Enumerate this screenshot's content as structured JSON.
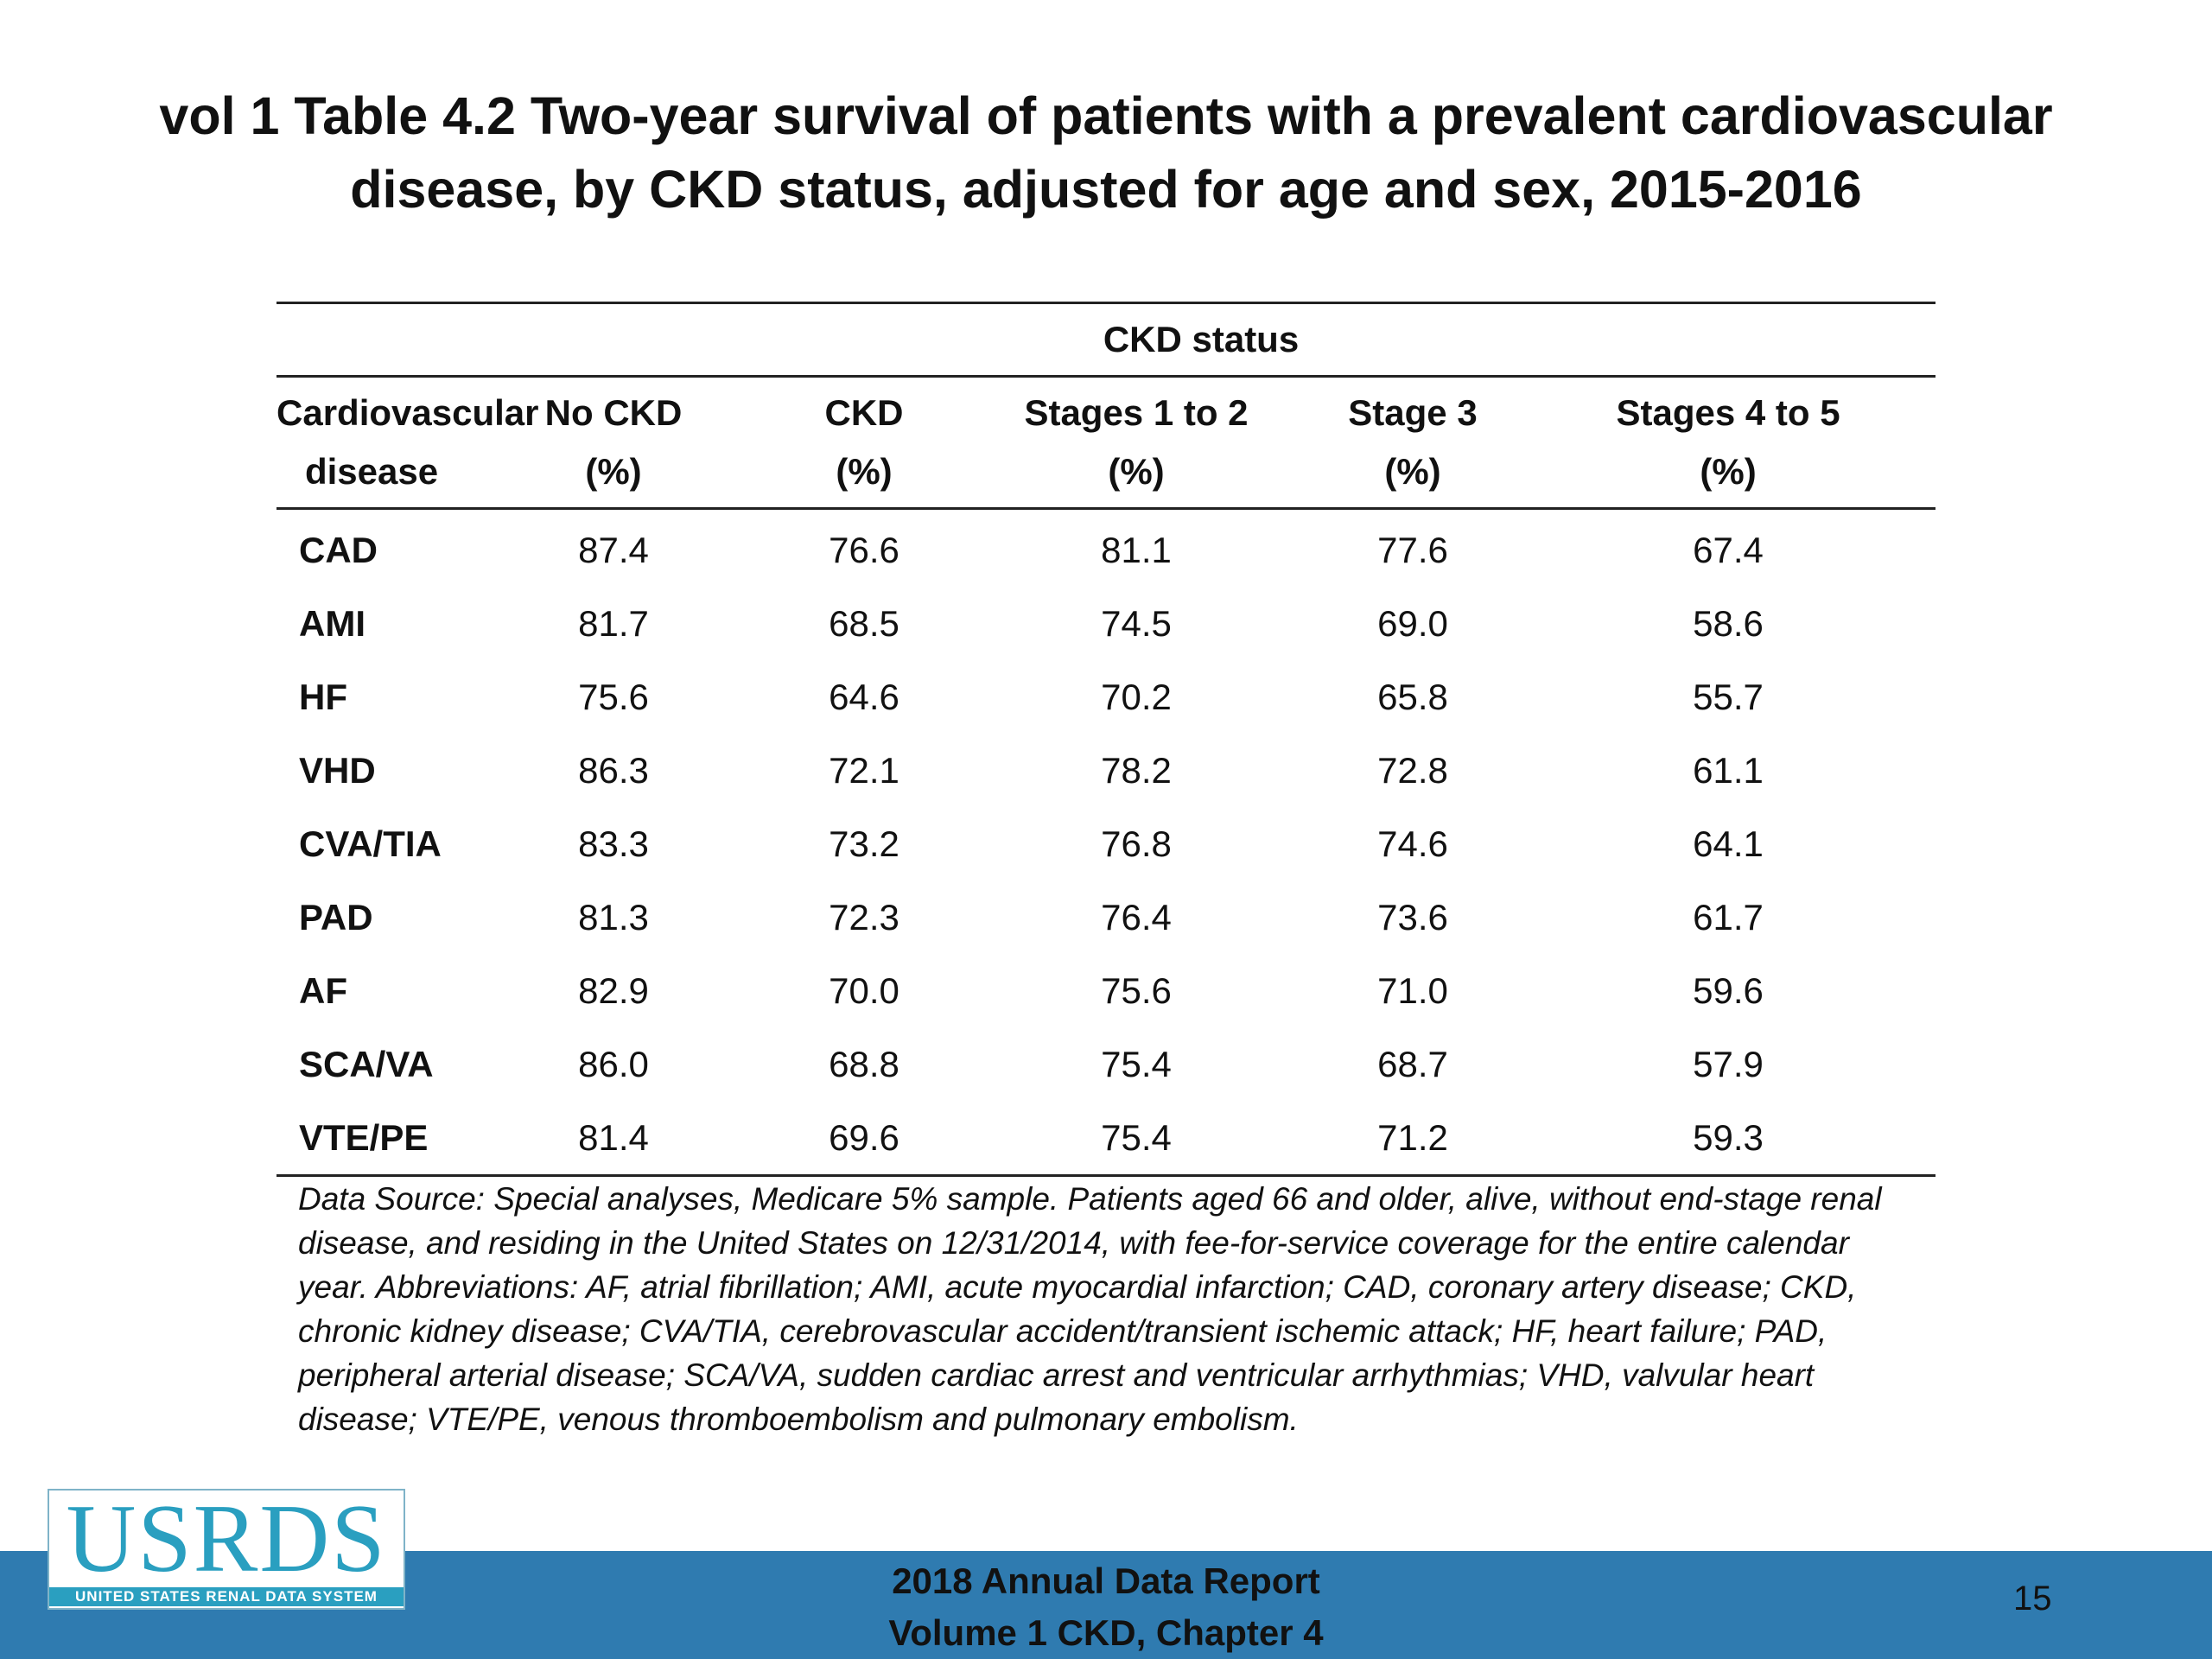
{
  "title": {
    "line1": "vol 1 Table 4.2 Two-year survival of patients with a prevalent cardiovascular",
    "line2": "disease, by CKD status, adjusted for age and sex, 2015-2016"
  },
  "table": {
    "group_header": "CKD status",
    "columns": [
      {
        "line1": "Cardiovascular",
        "line2": "disease"
      },
      {
        "line1": "No CKD",
        "line2": "(%)"
      },
      {
        "line1": "CKD",
        "line2": "(%)"
      },
      {
        "line1": "Stages 1 to 2",
        "line2": "(%)"
      },
      {
        "line1": "Stage 3",
        "line2": "(%)"
      },
      {
        "line1": "Stages 4 to 5",
        "line2": "(%)"
      }
    ],
    "rows": [
      [
        "CAD",
        "87.4",
        "76.6",
        "81.1",
        "77.6",
        "67.4"
      ],
      [
        "AMI",
        "81.7",
        "68.5",
        "74.5",
        "69.0",
        "58.6"
      ],
      [
        "HF",
        "75.6",
        "64.6",
        "70.2",
        "65.8",
        "55.7"
      ],
      [
        "VHD",
        "86.3",
        "72.1",
        "78.2",
        "72.8",
        "61.1"
      ],
      [
        "CVA/TIA",
        "83.3",
        "73.2",
        "76.8",
        "74.6",
        "64.1"
      ],
      [
        "PAD",
        "81.3",
        "72.3",
        "76.4",
        "73.6",
        "61.7"
      ],
      [
        "AF",
        "82.9",
        "70.0",
        "75.6",
        "71.0",
        "59.6"
      ],
      [
        "SCA/VA",
        "86.0",
        "68.8",
        "75.4",
        "68.7",
        "57.9"
      ],
      [
        "VTE/PE",
        "81.4",
        "69.6",
        "75.4",
        "71.2",
        "59.3"
      ]
    ]
  },
  "footnote": "Data Source: Special analyses, Medicare 5% sample. Patients aged 66 and older, alive, without end-stage renal disease, and residing in the United States on 12/31/2014, with fee-for-service coverage for the entire calendar year. Abbreviations: AF, atrial fibrillation; AMI, acute myocardial infarction; CAD, coronary artery disease; CKD, chronic kidney disease; CVA/TIA, cerebrovascular accident/transient ischemic attack; HF, heart failure; PAD, peripheral arterial disease; SCA/VA, sudden cardiac arrest and ventricular arrhythmias; VHD, valvular heart disease; VTE/PE, venous thromboembolism and pulmonary embolism.",
  "footer": {
    "line1": "2018 Annual Data Report",
    "line2": "Volume 1 CKD, Chapter 4",
    "page_number": "15"
  },
  "logo": {
    "wordmark": "USRDS",
    "subtitle": "UNITED STATES RENAL DATA SYSTEM"
  },
  "colors": {
    "footer_band": "#2f7bb0",
    "logo_accent": "#2a9fc0"
  }
}
